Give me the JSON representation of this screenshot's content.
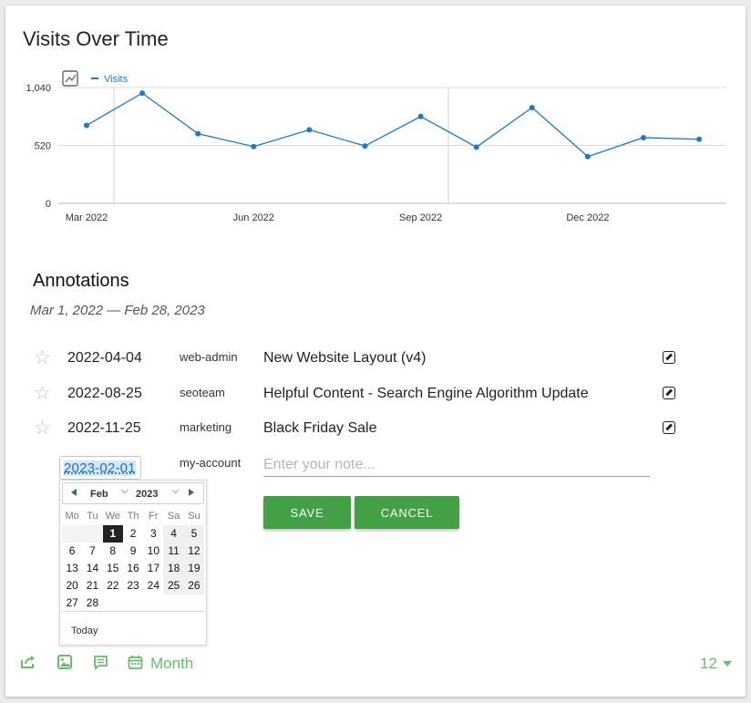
{
  "title": "Visits Over Time",
  "chart_data": {
    "type": "line",
    "title": "Visits Over Time",
    "x": [
      "2022-03",
      "2022-04",
      "2022-05",
      "2022-06",
      "2022-07",
      "2022-08",
      "2022-09",
      "2022-10",
      "2022-11",
      "2022-12",
      "2023-01",
      "2023-02"
    ],
    "x_tick_labels": [
      "Mar 2022",
      "Jun 2022",
      "Sep 2022",
      "Dec 2022"
    ],
    "series": [
      {
        "name": "Visits",
        "values": [
          700,
          990,
          625,
          510,
          660,
          515,
          780,
          505,
          860,
          420,
          590,
          575
        ],
        "color": "#1f78c1"
      }
    ],
    "y_tick_labels": [
      "1,040",
      "520",
      "0"
    ],
    "ylim": [
      0,
      1040
    ],
    "legend": "top-left",
    "grid": true
  },
  "annotations": {
    "heading": "Annotations",
    "range": "Mar 1, 2022 — Feb 28, 2023",
    "rows": [
      {
        "date": "2022-04-04",
        "user": "web-admin",
        "note": "New Website Layout (v4)"
      },
      {
        "date": "2022-08-25",
        "user": "seoteam",
        "note": "Helpful Content - Search Engine Algorithm Update"
      },
      {
        "date": "2022-11-25",
        "user": "marketing",
        "note": "Black Friday Sale"
      }
    ],
    "new": {
      "date": "2023-02-01",
      "user": "my-account",
      "note_placeholder": "Enter your note...",
      "save_label": "SAVE",
      "cancel_label": "CANCEL"
    }
  },
  "calendar": {
    "month": "Feb",
    "year": "2023",
    "weekdays": [
      "Mo",
      "Tu",
      "We",
      "Th",
      "Fr",
      "Sa",
      "Su"
    ],
    "selected_day": 1,
    "today_label": "Today"
  },
  "footer": {
    "period_label": "Month",
    "limit_value": "12",
    "icons": [
      "export-icon",
      "image-icon",
      "comment-icon",
      "calendar-icon"
    ]
  },
  "colors": {
    "accent_green": "#43a047",
    "line_blue": "#1f78c1",
    "footer_green": "#6abb6e"
  }
}
